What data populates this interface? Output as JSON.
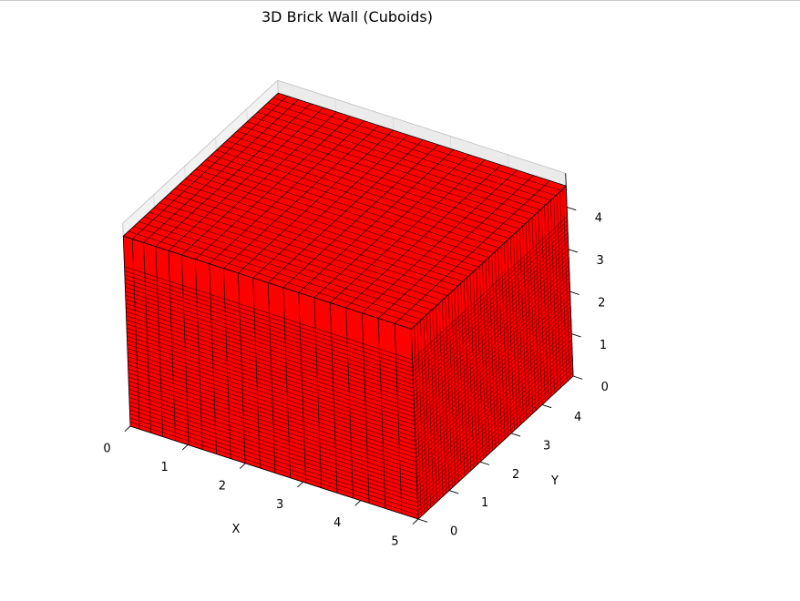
{
  "chart_data": {
    "type": "3d-bar",
    "title": "3D Brick Wall (Cuboids)",
    "xlabel": "X",
    "ylabel": "Y",
    "zlabel": "",
    "xlim": [
      0,
      5
    ],
    "ylim": [
      0,
      5
    ],
    "zlim": [
      0,
      4.8
    ],
    "xticks": [
      "0",
      "1",
      "2",
      "3",
      "4",
      "5"
    ],
    "yticks": [
      "0",
      "1",
      "2",
      "3",
      "4"
    ],
    "zticks": [
      "0",
      "1",
      "2",
      "3",
      "4"
    ],
    "wall": {
      "x_range": [
        0,
        5
      ],
      "y_range": [
        0,
        5
      ],
      "z_range": [
        0,
        4.5
      ],
      "face_color": "#ff0000",
      "edge_color": "#000000",
      "front_columns": 20,
      "courses": 40
    },
    "grid": true
  }
}
